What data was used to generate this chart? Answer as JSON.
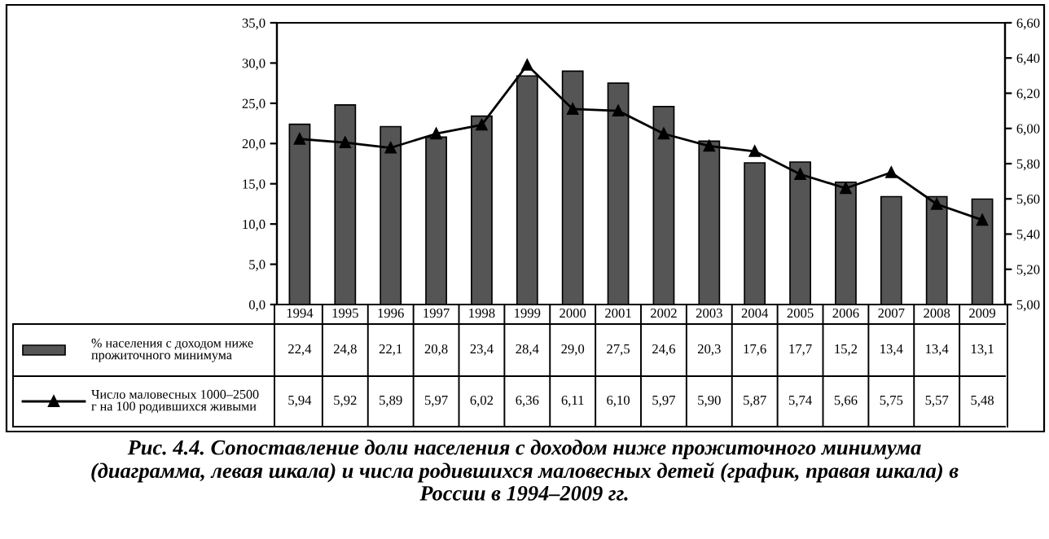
{
  "chart_data": {
    "type": "bar",
    "categories": [
      "1994",
      "1995",
      "1996",
      "1997",
      "1998",
      "1999",
      "2000",
      "2001",
      "2002",
      "2003",
      "2004",
      "2005",
      "2006",
      "2007",
      "2008",
      "2009"
    ],
    "series": [
      {
        "name": "% населения с доходом ниже прожиточного минимума",
        "color": "#555555",
        "values": [
          22.4,
          24.8,
          22.1,
          20.8,
          23.4,
          28.4,
          29.0,
          27.5,
          24.6,
          20.3,
          17.6,
          17.7,
          15.2,
          13.4,
          13.4,
          13.1
        ],
        "value_labels": [
          "22,4",
          "24,8",
          "22,1",
          "20,8",
          "23,4",
          "28,4",
          "29,0",
          "27,5",
          "24,6",
          "20,3",
          "17,6",
          "17,7",
          "15,2",
          "13,4",
          "13,4",
          "13,1"
        ]
      },
      {
        "name": "Число маловесных 1000–2500 г на 100 родившихся живыми",
        "type": "line",
        "axis": "y2",
        "color": "#000000",
        "marker": "triangle",
        "line_style": "solid",
        "values": [
          5.94,
          5.92,
          5.89,
          5.97,
          6.02,
          6.36,
          6.11,
          6.1,
          5.97,
          5.9,
          5.87,
          5.74,
          5.66,
          5.75,
          5.57,
          5.48
        ],
        "value_labels": [
          "5,94",
          "5,92",
          "5,89",
          "5,97",
          "6,02",
          "6,36",
          "6,11",
          "6,10",
          "5,97",
          "5,90",
          "5,87",
          "5,74",
          "5,66",
          "5,75",
          "5,57",
          "5,48"
        ]
      }
    ],
    "ylim": [
      0,
      35
    ],
    "yticks": [
      {
        "value": 0,
        "label": "0,0"
      },
      {
        "value": 5,
        "label": "5,0"
      },
      {
        "value": 10,
        "label": "10,0"
      },
      {
        "value": 15,
        "label": "15,0"
      },
      {
        "value": 20,
        "label": "20,0"
      },
      {
        "value": 25,
        "label": "25,0"
      },
      {
        "value": 30,
        "label": "30,0"
      },
      {
        "value": 35,
        "label": "35,0"
      }
    ],
    "y2lim": [
      5.0,
      6.6
    ],
    "y2ticks": [
      {
        "value": 5.0,
        "label": "5,00"
      },
      {
        "value": 5.2,
        "label": "5,20"
      },
      {
        "value": 5.4,
        "label": "5,40"
      },
      {
        "value": 5.6,
        "label": "5,60"
      },
      {
        "value": 5.8,
        "label": "5,80"
      },
      {
        "value": 6.0,
        "label": "6,00"
      },
      {
        "value": 6.2,
        "label": "6,20"
      },
      {
        "value": 6.4,
        "label": "6,40"
      },
      {
        "value": 6.6,
        "label": "6,60"
      }
    ],
    "grid": false,
    "legend": "bottom",
    "annotations": [
      "Рис. 4.4. Сопоставление доли населения с доходом ниже прожиточного минимума (диаграмма, левая шкала) и числа родившихся маловесных детей (график, правая шкала) в России в 1994–2009 гг."
    ]
  }
}
